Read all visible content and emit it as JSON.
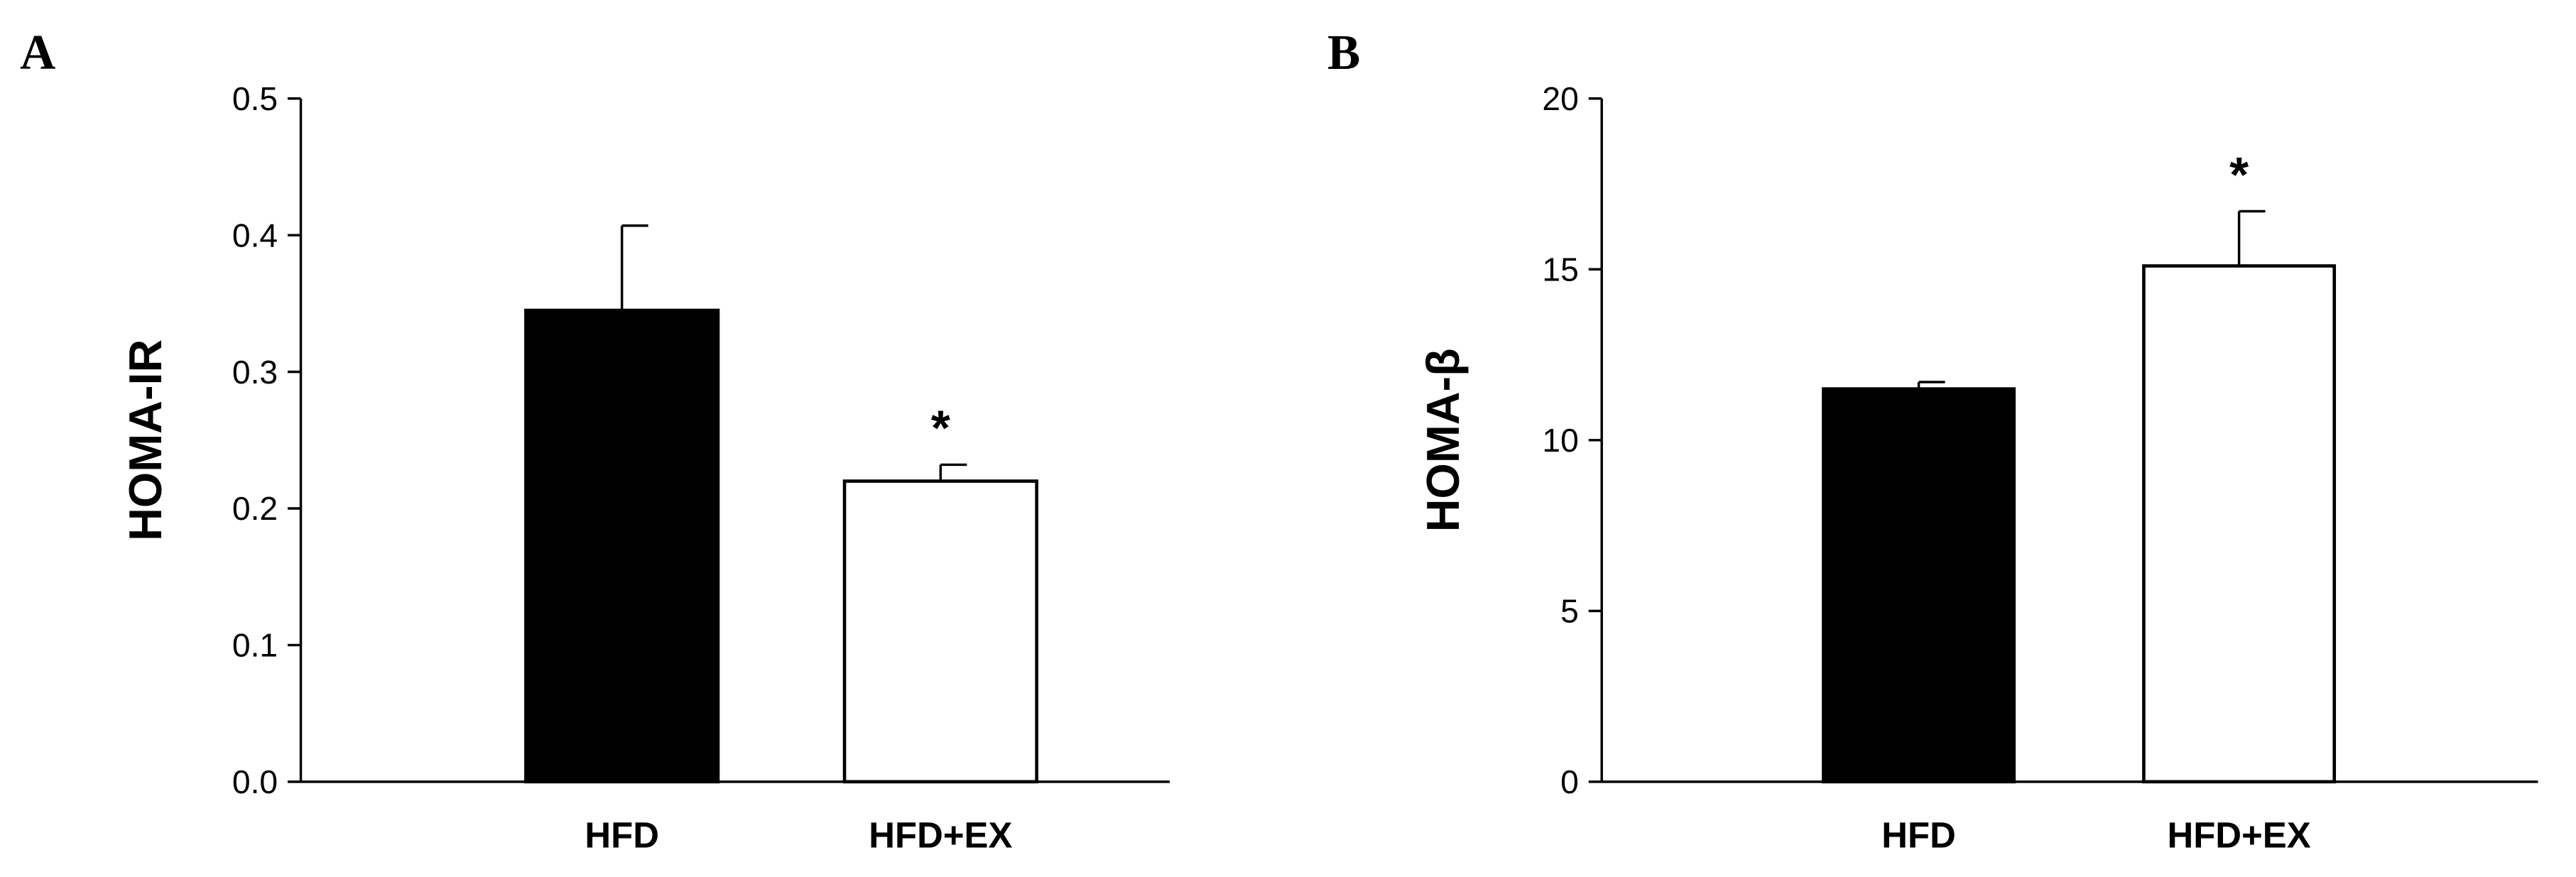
{
  "chart_data": [
    {
      "type": "bar",
      "panel": "A",
      "ylabel": "HOMA-IR",
      "categories": [
        "HFD",
        "HFD+EX"
      ],
      "values": [
        0.345,
        0.22
      ],
      "errors": [
        0.062,
        0.012
      ],
      "significance": [
        null,
        "*"
      ],
      "colors": [
        "#000000",
        "#ffffff"
      ],
      "ylim": [
        0,
        0.5
      ],
      "yticks": [
        {
          "value": 0,
          "label": "0.0"
        },
        0.1,
        0.2,
        0.3,
        0.4,
        0.5
      ]
    },
    {
      "type": "bar",
      "panel": "B",
      "ylabel": "HOMA-β",
      "categories": [
        "HFD",
        "HFD+EX"
      ],
      "values": [
        11.5,
        15.1
      ],
      "errors": [
        0.2,
        1.6
      ],
      "significance": [
        null,
        "*"
      ],
      "colors": [
        "#000000",
        "#ffffff"
      ],
      "ylim": [
        0,
        20
      ],
      "yticks": [
        0,
        5,
        10,
        15,
        20
      ]
    }
  ]
}
